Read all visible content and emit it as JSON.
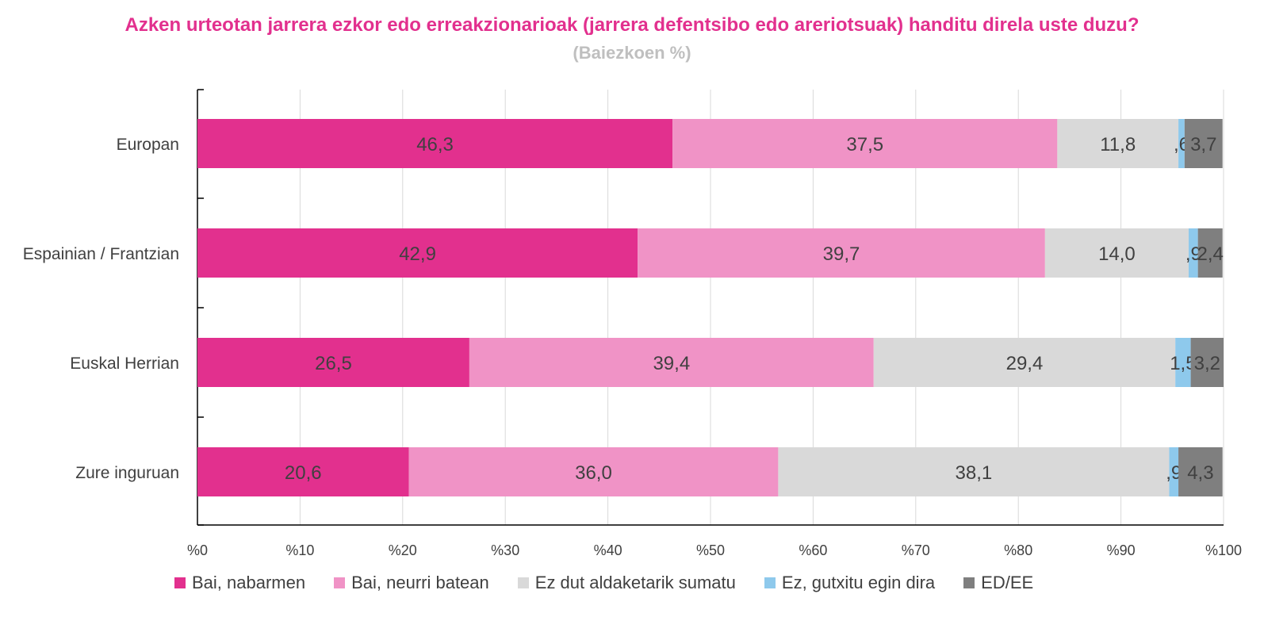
{
  "chart_data": {
    "type": "bar",
    "orientation": "horizontal",
    "stacked": true,
    "title": "Azken urteotan jarrera ezkor edo erreakzionarioak (jarrera defentsibo edo areriotsuak) handitu direla uste duzu?",
    "subtitle": "(Baiezkoen %)",
    "categories": [
      "Europan",
      "Espainian / Frantzian",
      "Euskal Herrian",
      "Zure inguruan"
    ],
    "series": [
      {
        "name": "Bai, nabarmen",
        "color": "#e2308e",
        "values": [
          46.3,
          42.9,
          26.5,
          20.6
        ],
        "labels": [
          "46,3",
          "42,9",
          "26,5",
          "20,6"
        ]
      },
      {
        "name": "Bai, neurri batean",
        "color": "#f093c6",
        "values": [
          37.5,
          39.7,
          39.4,
          36.0
        ],
        "labels": [
          "37,5",
          "39,7",
          "39,4",
          "36,0"
        ]
      },
      {
        "name": "Ez dut aldaketarik sumatu",
        "color": "#d9d9d9",
        "values": [
          11.8,
          14.0,
          29.4,
          38.1
        ],
        "labels": [
          "11,8",
          "14,0",
          "29,4",
          "38,1"
        ]
      },
      {
        "name": "Ez, gutxitu egin dira",
        "color": "#8ec9ec",
        "values": [
          0.6,
          0.9,
          1.5,
          0.9
        ],
        "labels": [
          ",6",
          ",9",
          "1,5",
          ",9"
        ]
      },
      {
        "name": "ED/EE",
        "color": "#7f7f7f",
        "values": [
          3.7,
          2.4,
          3.2,
          4.3
        ],
        "labels": [
          "3,7",
          "2,4",
          "3,2",
          "4,3"
        ]
      }
    ],
    "xlim": [
      0,
      100
    ],
    "xticks": [
      "%0",
      "%10",
      "%20",
      "%30",
      "%40",
      "%50",
      "%60",
      "%70",
      "%80",
      "%90",
      "%100"
    ],
    "grid": true,
    "legend_position": "bottom"
  }
}
